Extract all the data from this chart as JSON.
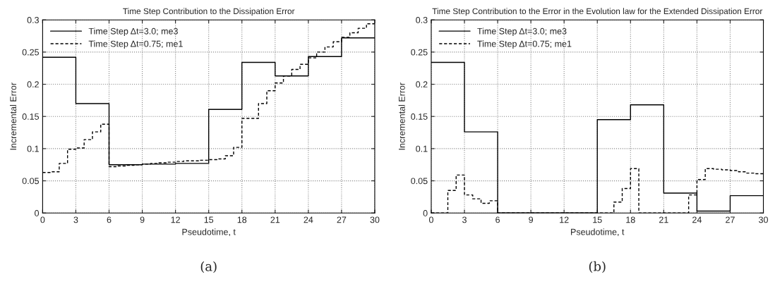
{
  "chart_data": [
    {
      "type": "step",
      "title": "Time Step Contribution to the Dissipation Error",
      "xlabel": "Pseudotime, t",
      "ylabel": "Incremental Error",
      "annotations": [
        "(a)"
      ],
      "xlim": [
        0,
        30
      ],
      "xticks": [
        0,
        3,
        6,
        9,
        12,
        15,
        18,
        21,
        24,
        27,
        30
      ],
      "ylim": [
        0,
        0.3
      ],
      "yticks": [
        0,
        0.05,
        0.1,
        0.15,
        0.2,
        0.25,
        0.3
      ],
      "grid": true,
      "legend": "top left",
      "series": [
        {
          "name": "Time Step Δt=3.0; me3",
          "color": "#000000",
          "line_style": "solid",
          "x": [
            0,
            3,
            6,
            9,
            12,
            15,
            18,
            21,
            24,
            27,
            30
          ],
          "values": [
            0.242,
            0.17,
            0.075,
            0.076,
            0.077,
            0.161,
            0.234,
            0.213,
            0.243,
            0.272,
            0.272
          ]
        },
        {
          "name": "Time Step Δt=0.75; me1",
          "color": "#000000",
          "line_style": "dashed",
          "x": [
            0,
            0.75,
            1.5,
            2.25,
            3,
            3.75,
            4.5,
            5.25,
            6,
            6.75,
            7.5,
            8.25,
            9,
            9.75,
            10.5,
            11.25,
            12,
            12.75,
            13.5,
            14.25,
            15,
            15.75,
            16.5,
            17.25,
            18,
            18.75,
            19.5,
            20.25,
            21,
            21.75,
            22.5,
            23.25,
            24,
            24.75,
            25.5,
            26.25,
            27,
            27.75,
            28.5,
            29.25,
            30
          ],
          "values": [
            0.063,
            0.064,
            0.077,
            0.099,
            0.101,
            0.114,
            0.126,
            0.138,
            0.072,
            0.073,
            0.074,
            0.075,
            0.076,
            0.077,
            0.078,
            0.079,
            0.08,
            0.081,
            0.081,
            0.082,
            0.083,
            0.084,
            0.089,
            0.102,
            0.147,
            0.147,
            0.17,
            0.19,
            0.202,
            0.213,
            0.223,
            0.231,
            0.241,
            0.25,
            0.258,
            0.266,
            0.273,
            0.28,
            0.287,
            0.294,
            0.294
          ]
        }
      ]
    },
    {
      "type": "step",
      "title": "Time Step Contribution to the Error in the Evolution law for the Extended Dissipation Error",
      "xlabel": "Pseudotime, t",
      "ylabel": "Incremental Error",
      "annotations": [
        "(b)"
      ],
      "xlim": [
        0,
        30
      ],
      "xticks": [
        0,
        3,
        6,
        9,
        12,
        15,
        18,
        21,
        24,
        27,
        30
      ],
      "ylim": [
        0,
        0.3
      ],
      "yticks": [
        0,
        0.05,
        0.1,
        0.15,
        0.2,
        0.25,
        0.3
      ],
      "grid": true,
      "legend": "top left",
      "series": [
        {
          "name": "Time Step Δt=3.0; me3",
          "color": "#000000",
          "line_style": "solid",
          "x": [
            0,
            3,
            6,
            9,
            12,
            15,
            18,
            21,
            24,
            27,
            30
          ],
          "values": [
            0.234,
            0.126,
            0,
            0,
            0,
            0.145,
            0.168,
            0.031,
            0.003,
            0.027,
            0.027
          ]
        },
        {
          "name": "Time Step Δt=0.75; me1",
          "color": "#000000",
          "line_style": "dashed",
          "x": [
            0,
            0.75,
            1.5,
            2.25,
            3,
            3.75,
            4.5,
            5.25,
            6,
            6.75,
            7.5,
            8.25,
            9,
            9.75,
            10.5,
            11.25,
            12,
            12.75,
            13.5,
            14.25,
            15,
            15.75,
            16.5,
            17.25,
            18,
            18.75,
            19.5,
            20.25,
            21,
            21.75,
            22.5,
            23.25,
            24,
            24.75,
            25.5,
            26.25,
            27,
            27.75,
            28.5,
            29.25,
            30
          ],
          "values": [
            0,
            0,
            0.035,
            0.059,
            0.028,
            0.022,
            0.015,
            0.019,
            0,
            0,
            0,
            0,
            0,
            0,
            0,
            0,
            0,
            0,
            0,
            0,
            0,
            0,
            0.017,
            0.038,
            0.069,
            0,
            0,
            0,
            0,
            0,
            0,
            0.028,
            0.052,
            0.069,
            0.068,
            0.067,
            0.066,
            0.064,
            0.062,
            0.061,
            0.061
          ]
        }
      ]
    }
  ]
}
